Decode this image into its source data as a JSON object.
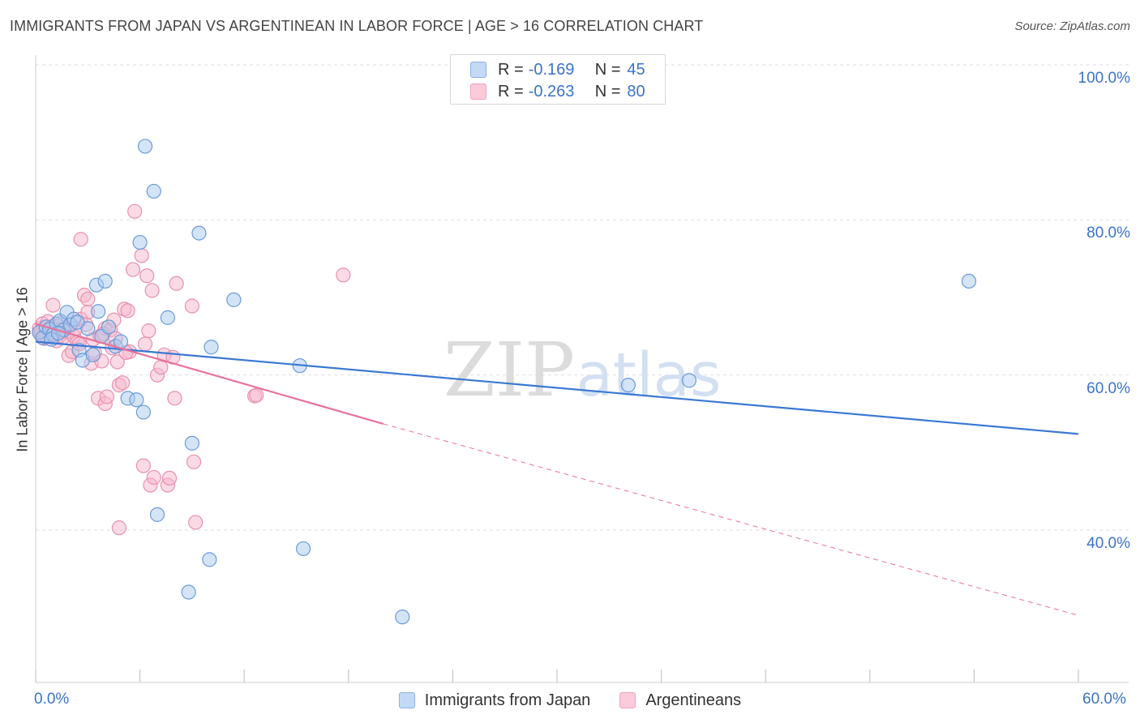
{
  "header": {
    "title": "IMMIGRANTS FROM JAPAN VS ARGENTINEAN IN LABOR FORCE | AGE > 16 CORRELATION CHART",
    "source": "Source: ZipAtlas.com"
  },
  "legend_top": {
    "rows": [
      {
        "r_label": "R =",
        "r_value": "-0.169",
        "n_label": "N =",
        "n_value": "45"
      },
      {
        "r_label": "R =",
        "r_value": "-0.263",
        "n_label": "N =",
        "n_value": "80"
      }
    ]
  },
  "legend_bottom": {
    "items": [
      {
        "label": "Immigrants from Japan"
      },
      {
        "label": "Argentineans"
      }
    ]
  },
  "watermark": {
    "zip": "ZIP",
    "atlas": "atlas"
  },
  "colors": {
    "blue_fill": "#a9c9f0",
    "blue_stroke": "#6a9bd8",
    "blue_line": "#3a78d4",
    "pink_fill": "#f6b8cc",
    "pink_stroke": "#e990ae",
    "pink_line": "#e8729a",
    "tick_text": "#3b73c8",
    "grid": "#dddddd"
  },
  "chart_data": {
    "type": "scatter",
    "title": "IMMIGRANTS FROM JAPAN VS ARGENTINEAN IN LABOR FORCE | AGE > 16 CORRELATION CHART",
    "xlabel": "",
    "ylabel": "In Labor Force | Age > 16",
    "xlim": [
      0,
      60
    ],
    "ylim": [
      20,
      104
    ],
    "x_tick_labels": [
      "0.0%",
      "60.0%"
    ],
    "y_ticks": [
      {
        "value": 100,
        "label": "100.0%"
      },
      {
        "value": 80,
        "label": "80.0%"
      },
      {
        "value": 60,
        "label": "60.0%"
      },
      {
        "value": 40,
        "label": "40.0%"
      }
    ],
    "x_minor_ticks": [
      0,
      6,
      12,
      18,
      24,
      30,
      36,
      42,
      48,
      54,
      60
    ],
    "series": [
      {
        "name": "Immigrants from Japan",
        "color": "blue",
        "R": -0.169,
        "N": 45,
        "trend": {
          "x0": 0,
          "y0": 64.3,
          "x1": 60,
          "y1": 52.4
        },
        "points": [
          [
            0.2,
            65.5
          ],
          [
            0.4,
            64.8
          ],
          [
            0.6,
            66.2
          ],
          [
            0.8,
            65.9
          ],
          [
            1.0,
            65.2
          ],
          [
            1.2,
            66.6
          ],
          [
            1.4,
            67.0
          ],
          [
            1.6,
            65.8
          ],
          [
            1.8,
            68.1
          ],
          [
            2.0,
            66.5
          ],
          [
            2.2,
            67.2
          ],
          [
            2.5,
            63.2
          ],
          [
            2.7,
            61.9
          ],
          [
            3.0,
            66.0
          ],
          [
            3.3,
            62.6
          ],
          [
            3.5,
            71.6
          ],
          [
            3.6,
            68.2
          ],
          [
            3.8,
            65.0
          ],
          [
            4.0,
            72.1
          ],
          [
            4.2,
            66.2
          ],
          [
            4.6,
            63.7
          ],
          [
            4.9,
            64.3
          ],
          [
            5.3,
            57.0
          ],
          [
            5.8,
            56.8
          ],
          [
            6.0,
            77.1
          ],
          [
            6.2,
            55.2
          ],
          [
            6.3,
            89.5
          ],
          [
            6.8,
            83.7
          ],
          [
            7.0,
            42.0
          ],
          [
            7.6,
            67.4
          ],
          [
            9.0,
            51.2
          ],
          [
            9.4,
            78.3
          ],
          [
            10.0,
            36.2
          ],
          [
            10.1,
            63.6
          ],
          [
            11.4,
            69.7
          ],
          [
            8.8,
            32.0
          ],
          [
            15.2,
            61.2
          ],
          [
            15.4,
            37.6
          ],
          [
            21.1,
            28.8
          ],
          [
            34.1,
            58.7
          ],
          [
            37.6,
            59.3
          ],
          [
            53.7,
            72.1
          ],
          [
            0.9,
            64.6
          ],
          [
            1.3,
            65.4
          ],
          [
            2.4,
            66.8
          ]
        ]
      },
      {
        "name": "Argentineans",
        "color": "pink",
        "R": -0.263,
        "N": 80,
        "trend": {
          "x0": 0,
          "y0": 66.6,
          "x1": 20,
          "y1": 53.7
        },
        "trend_dashed": {
          "x0": 20,
          "y0": 53.7,
          "x1": 60,
          "y1": 29.0
        },
        "points": [
          [
            0.2,
            66.0
          ],
          [
            0.3,
            65.2
          ],
          [
            0.4,
            66.6
          ],
          [
            0.5,
            64.7
          ],
          [
            0.6,
            65.8
          ],
          [
            0.7,
            66.9
          ],
          [
            0.8,
            65.3
          ],
          [
            0.9,
            66.2
          ],
          [
            1.0,
            69.0
          ],
          [
            1.1,
            65.7
          ],
          [
            1.2,
            64.4
          ],
          [
            1.3,
            66.3
          ],
          [
            1.4,
            65.1
          ],
          [
            1.5,
            66.8
          ],
          [
            1.6,
            64.9
          ],
          [
            1.8,
            65.6
          ],
          [
            1.9,
            62.5
          ],
          [
            2.0,
            66.4
          ],
          [
            2.1,
            63.0
          ],
          [
            2.2,
            65.0
          ],
          [
            2.3,
            66.0
          ],
          [
            2.4,
            64.2
          ],
          [
            2.6,
            67.2
          ],
          [
            2.6,
            77.5
          ],
          [
            2.8,
            70.3
          ],
          [
            3.0,
            68.1
          ],
          [
            3.0,
            69.8
          ],
          [
            3.2,
            61.5
          ],
          [
            3.3,
            64.6
          ],
          [
            3.4,
            62.8
          ],
          [
            3.6,
            57.0
          ],
          [
            3.7,
            65.0
          ],
          [
            3.8,
            61.8
          ],
          [
            4.0,
            66.0
          ],
          [
            4.0,
            56.3
          ],
          [
            4.1,
            57.2
          ],
          [
            4.3,
            65.8
          ],
          [
            4.4,
            63.5
          ],
          [
            4.5,
            67.1
          ],
          [
            4.7,
            61.7
          ],
          [
            4.8,
            58.7
          ],
          [
            4.8,
            40.3
          ],
          [
            5.0,
            59.0
          ],
          [
            5.1,
            68.5
          ],
          [
            5.3,
            68.3
          ],
          [
            5.4,
            63.0
          ],
          [
            5.6,
            73.6
          ],
          [
            5.7,
            81.1
          ],
          [
            6.1,
            75.4
          ],
          [
            6.2,
            48.3
          ],
          [
            6.3,
            64.0
          ],
          [
            6.4,
            72.8
          ],
          [
            6.5,
            65.7
          ],
          [
            6.6,
            45.8
          ],
          [
            6.7,
            70.9
          ],
          [
            6.8,
            46.8
          ],
          [
            7.0,
            60.0
          ],
          [
            7.2,
            61.0
          ],
          [
            7.4,
            62.6
          ],
          [
            7.6,
            45.8
          ],
          [
            7.7,
            46.7
          ],
          [
            7.9,
            62.3
          ],
          [
            8.0,
            57.0
          ],
          [
            8.1,
            71.8
          ],
          [
            9.0,
            68.9
          ],
          [
            9.1,
            48.8
          ],
          [
            9.2,
            41.0
          ],
          [
            12.6,
            57.3
          ],
          [
            12.7,
            57.4
          ],
          [
            17.7,
            72.9
          ],
          [
            1.7,
            66.1
          ],
          [
            0.6,
            64.9
          ],
          [
            2.9,
            66.5
          ],
          [
            3.9,
            65.3
          ],
          [
            5.2,
            62.9
          ],
          [
            1.0,
            66.0
          ],
          [
            0.3,
            65.6
          ],
          [
            2.5,
            64.0
          ],
          [
            1.5,
            65.9
          ],
          [
            4.6,
            64.7
          ]
        ]
      }
    ]
  }
}
